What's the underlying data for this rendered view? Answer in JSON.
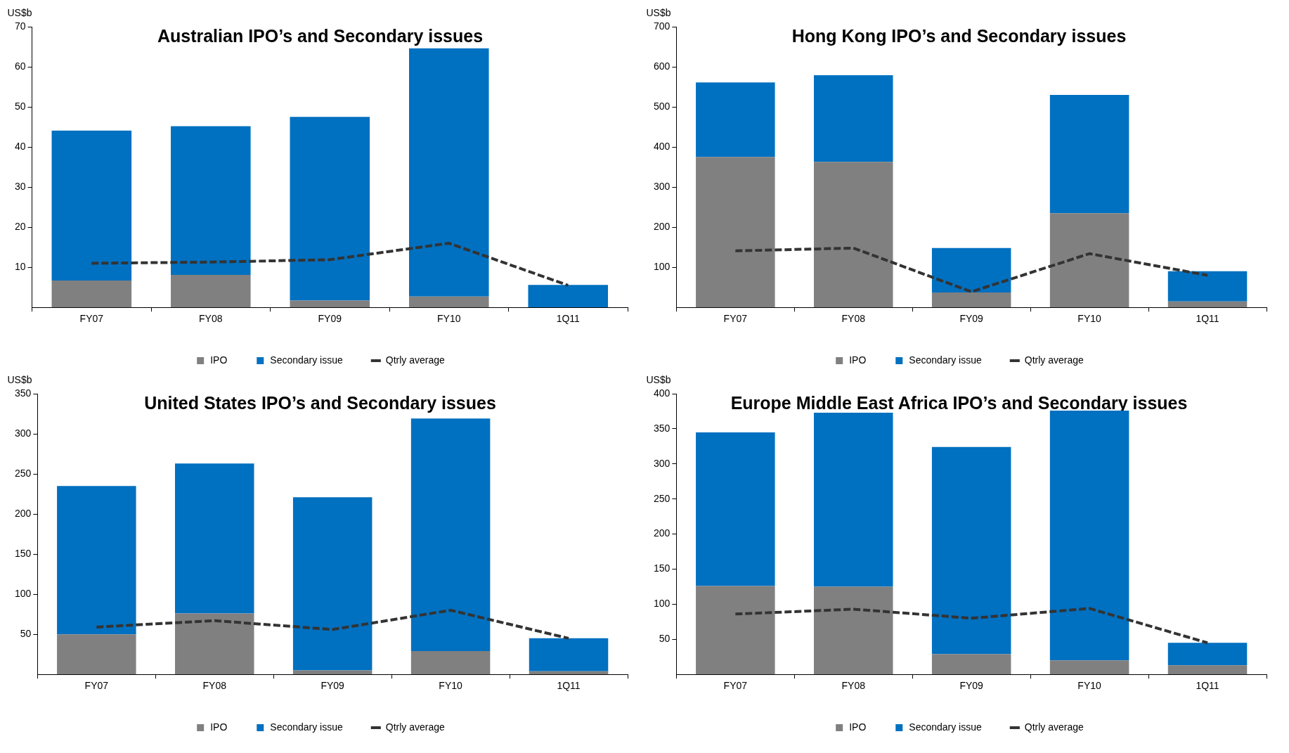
{
  "chart_data": [
    {
      "type": "bar",
      "title": "Australian IPO’s and Secondary issues",
      "ylabel": "US$b",
      "categories": [
        "FY07",
        "FY08",
        "FY09",
        "FY10",
        "1Q11"
      ],
      "stacked": true,
      "legend": "bottom",
      "marker": "none",
      "ylim": [
        0,
        70
      ],
      "yticks": [
        10,
        20,
        30,
        40,
        50,
        60,
        70
      ],
      "series": [
        {
          "name": "IPO",
          "color": "#808080",
          "values": [
            6.7,
            8.1,
            1.7,
            2.7,
            0
          ]
        },
        {
          "name": "Secondary issue",
          "color": "#0070c0",
          "values": [
            37.4,
            37.1,
            45.8,
            61.9,
            5.6
          ]
        },
        {
          "name": "Qtrly average",
          "type": "line",
          "line_style": "dashed",
          "color": "#333333",
          "values": [
            11.0,
            11.3,
            11.9,
            16.0,
            5.5
          ]
        }
      ]
    },
    {
      "type": "bar",
      "title": "Hong Kong IPO’s and Secondary issues",
      "ylabel": "US$b",
      "categories": [
        "FY07",
        "FY08",
        "FY09",
        "FY10",
        "1Q11"
      ],
      "stacked": true,
      "legend": "bottom",
      "marker": "none",
      "ylim": [
        0,
        700
      ],
      "yticks": [
        100,
        200,
        300,
        400,
        500,
        600,
        700
      ],
      "series": [
        {
          "name": "IPO",
          "color": "#808080",
          "values": [
            375,
            363,
            37,
            235,
            15
          ]
        },
        {
          "name": "Secondary issue",
          "color": "#0070c0",
          "values": [
            186,
            216,
            111,
            295,
            75
          ]
        },
        {
          "name": "Qtrly average",
          "type": "line",
          "line_style": "dashed",
          "color": "#333333",
          "values": [
            141,
            148,
            39,
            134,
            80
          ]
        }
      ]
    },
    {
      "type": "bar",
      "title": "United States IPO’s and Secondary issues",
      "ylabel": "US$b",
      "categories": [
        "FY07",
        "FY08",
        "FY09",
        "FY10",
        "1Q11"
      ],
      "stacked": true,
      "legend": "bottom",
      "marker": "none",
      "ylim": [
        0,
        350
      ],
      "yticks": [
        50,
        100,
        150,
        200,
        250,
        300,
        350
      ],
      "series": [
        {
          "name": "IPO",
          "color": "#808080",
          "values": [
            50,
            76,
            5,
            29,
            4
          ]
        },
        {
          "name": "Secondary issue",
          "color": "#0070c0",
          "values": [
            185,
            187,
            216,
            290,
            41
          ]
        },
        {
          "name": "Qtrly average",
          "type": "line",
          "line_style": "dashed",
          "color": "#333333",
          "values": [
            59,
            67,
            56,
            80,
            45
          ]
        }
      ]
    },
    {
      "type": "bar",
      "title": "Europe Middle East Africa IPO’s and Secondary issues",
      "ylabel": "US$b",
      "categories": [
        "FY07",
        "FY08",
        "FY09",
        "FY10",
        "1Q11"
      ],
      "stacked": true,
      "legend": "bottom",
      "marker": "none",
      "ylim": [
        0,
        400
      ],
      "yticks": [
        50,
        100,
        150,
        200,
        250,
        300,
        350,
        400
      ],
      "series": [
        {
          "name": "IPO",
          "color": "#808080",
          "values": [
            126,
            125,
            29,
            20,
            13
          ]
        },
        {
          "name": "Secondary issue",
          "color": "#0070c0",
          "values": [
            219,
            248,
            295,
            356,
            32
          ]
        },
        {
          "name": "Qtrly average",
          "type": "line",
          "line_style": "dashed",
          "color": "#333333",
          "values": [
            86,
            93,
            80,
            94,
            45
          ]
        }
      ]
    }
  ]
}
